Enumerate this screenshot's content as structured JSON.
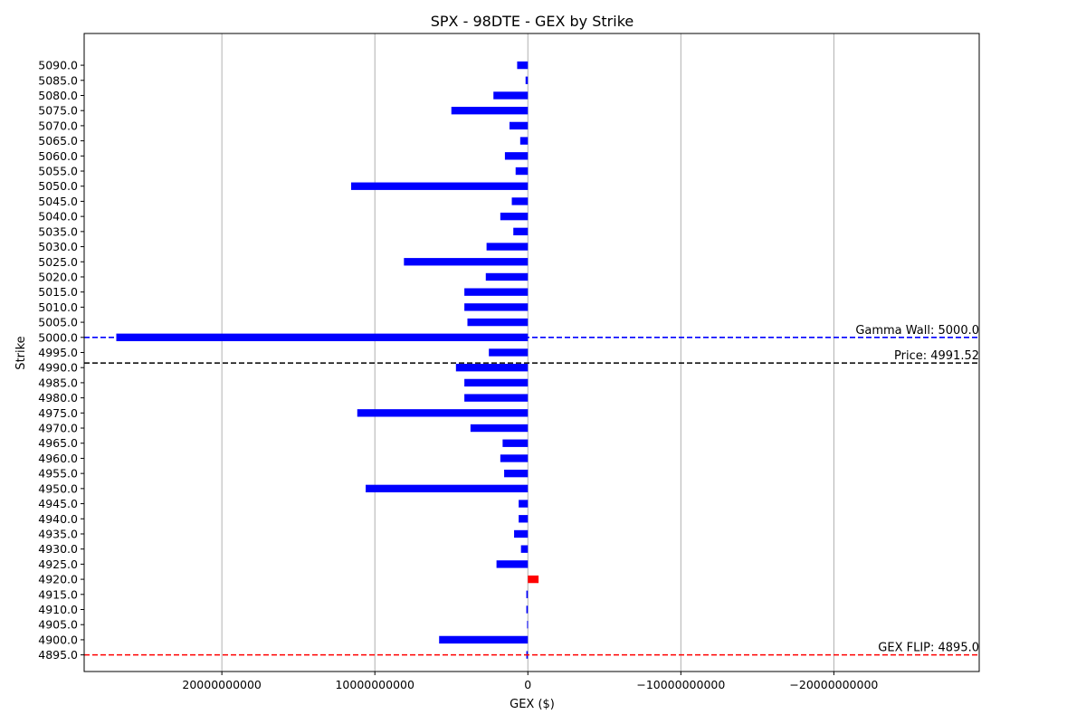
{
  "chart_data": {
    "type": "bar",
    "orientation": "horizontal",
    "title": "SPX - 98DTE - GEX by Strike",
    "xlabel": "GEX ($)",
    "ylabel": "Strike",
    "xaxis_inverted": true,
    "xlim": [
      29000000000,
      -29500000000
    ],
    "xticks": [
      {
        "value": 20000000000,
        "label": "20000000000"
      },
      {
        "value": 10000000000,
        "label": "10000000000"
      },
      {
        "value": 0,
        "label": "0"
      },
      {
        "value": -10000000000,
        "label": "−10000000000"
      },
      {
        "value": -20000000000,
        "label": "−20000000000"
      }
    ],
    "grid": "x",
    "colors": {
      "positive": "#0000ff",
      "negative": "#ff0000",
      "gamma_wall": "#0000ff",
      "price": "#000000",
      "gex_flip": "#ff0000"
    },
    "bars": [
      {
        "strike": 5090.0,
        "label": "5090.0",
        "value": 700000000
      },
      {
        "strike": 5085.0,
        "label": "5085.0",
        "value": 150000000
      },
      {
        "strike": 5080.0,
        "label": "5080.0",
        "value": 2250000000
      },
      {
        "strike": 5075.0,
        "label": "5075.0",
        "value": 5000000000
      },
      {
        "strike": 5070.0,
        "label": "5070.0",
        "value": 1200000000
      },
      {
        "strike": 5065.0,
        "label": "5065.0",
        "value": 500000000
      },
      {
        "strike": 5060.0,
        "label": "5060.0",
        "value": 1500000000
      },
      {
        "strike": 5055.0,
        "label": "5055.0",
        "value": 800000000
      },
      {
        "strike": 5050.0,
        "label": "5050.0",
        "value": 11550000000
      },
      {
        "strike": 5045.0,
        "label": "5045.0",
        "value": 1050000000
      },
      {
        "strike": 5040.0,
        "label": "5040.0",
        "value": 1800000000
      },
      {
        "strike": 5035.0,
        "label": "5035.0",
        "value": 950000000
      },
      {
        "strike": 5030.0,
        "label": "5030.0",
        "value": 2700000000
      },
      {
        "strike": 5025.0,
        "label": "5025.0",
        "value": 8100000000
      },
      {
        "strike": 5020.0,
        "label": "5020.0",
        "value": 2750000000
      },
      {
        "strike": 5015.0,
        "label": "5015.0",
        "value": 4150000000
      },
      {
        "strike": 5010.0,
        "label": "5010.0",
        "value": 4150000000
      },
      {
        "strike": 5005.0,
        "label": "5005.0",
        "value": 3950000000
      },
      {
        "strike": 5000.0,
        "label": "5000.0",
        "value": 26900000000
      },
      {
        "strike": 4995.0,
        "label": "4995.0",
        "value": 2550000000
      },
      {
        "strike": 4990.0,
        "label": "4990.0",
        "value": 4700000000
      },
      {
        "strike": 4985.0,
        "label": "4985.0",
        "value": 4150000000
      },
      {
        "strike": 4980.0,
        "label": "4980.0",
        "value": 4150000000
      },
      {
        "strike": 4975.0,
        "label": "4975.0",
        "value": 11150000000
      },
      {
        "strike": 4970.0,
        "label": "4970.0",
        "value": 3750000000
      },
      {
        "strike": 4965.0,
        "label": "4965.0",
        "value": 1650000000
      },
      {
        "strike": 4960.0,
        "label": "4960.0",
        "value": 1800000000
      },
      {
        "strike": 4955.0,
        "label": "4955.0",
        "value": 1550000000
      },
      {
        "strike": 4950.0,
        "label": "4950.0",
        "value": 10600000000
      },
      {
        "strike": 4945.0,
        "label": "4945.0",
        "value": 600000000
      },
      {
        "strike": 4940.0,
        "label": "4940.0",
        "value": 600000000
      },
      {
        "strike": 4935.0,
        "label": "4935.0",
        "value": 900000000
      },
      {
        "strike": 4930.0,
        "label": "4930.0",
        "value": 450000000
      },
      {
        "strike": 4925.0,
        "label": "4925.0",
        "value": 2050000000
      },
      {
        "strike": 4920.0,
        "label": "4920.0",
        "value": -700000000
      },
      {
        "strike": 4915.0,
        "label": "4915.0",
        "value": 100000000
      },
      {
        "strike": 4910.0,
        "label": "4910.0",
        "value": 100000000
      },
      {
        "strike": 4905.0,
        "label": "4905.0",
        "value": 50000000
      },
      {
        "strike": 4900.0,
        "label": "4900.0",
        "value": 5800000000
      },
      {
        "strike": 4895.0,
        "label": "4895.0",
        "value": 100000000
      }
    ],
    "ylim": [
      4889.5,
      5100.5
    ],
    "reference_lines": [
      {
        "strike": 5000.0,
        "label": "Gamma Wall: 5000.0",
        "color": "#0000ff"
      },
      {
        "strike": 4991.52,
        "label": "Price: 4991.52",
        "color": "#000000"
      },
      {
        "strike": 4895.0,
        "label": "GEX FLIP: 4895.0",
        "color": "#ff0000"
      }
    ]
  }
}
